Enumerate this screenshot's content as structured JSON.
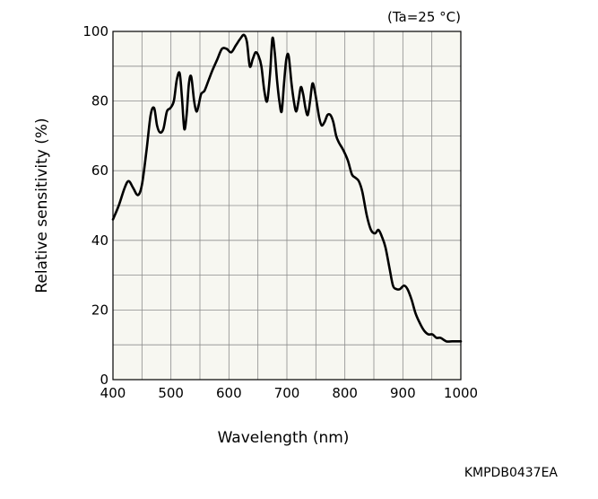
{
  "chart_data": {
    "type": "line",
    "title": "",
    "xlabel": "Wavelength (nm)",
    "ylabel": "Relative sensitivity (%)",
    "xlim": [
      400,
      1000
    ],
    "ylim": [
      0,
      100
    ],
    "x_ticks": [
      400,
      500,
      600,
      700,
      800,
      900,
      1000
    ],
    "y_ticks": [
      0,
      20,
      40,
      60,
      80,
      100
    ],
    "grid": true,
    "condition_label": "(Ta=25 °C)",
    "document_code": "KMPDB0437EA",
    "colors": {
      "background": "#ffffff",
      "plot_area": "#f7f7f1",
      "grid": "#8c8c8c",
      "line": "#000000"
    },
    "series": [
      {
        "x": [
          400,
          410,
          420,
          427,
          435,
          443,
          450,
          458,
          465,
          471,
          476,
          481,
          487,
          493,
          499,
          505,
          510,
          515,
          519,
          523,
          527,
          531,
          535,
          540,
          544,
          548,
          552,
          558,
          565,
          572,
          580,
          588,
          596,
          604,
          612,
          620,
          626,
          631,
          636,
          641,
          646,
          651,
          656,
          661,
          666,
          671,
          675,
          679,
          683,
          687,
          691,
          695,
          699,
          703,
          708,
          712,
          716,
          720,
          724,
          728,
          732,
          736,
          740,
          744,
          748,
          752,
          756,
          760,
          765,
          770,
          775,
          780,
          785,
          790,
          797,
          805,
          812,
          818,
          824,
          830,
          838,
          845,
          852,
          858,
          864,
          870,
          877,
          883,
          889,
          895,
          902,
          908,
          915,
          922,
          930,
          937,
          944,
          951,
          958,
          965,
          975,
          985,
          993,
          1000
        ],
        "y": [
          46,
          50,
          55,
          57,
          55,
          53,
          56,
          66,
          76,
          78,
          73,
          71,
          72,
          77,
          78,
          80,
          86,
          88,
          81,
          72,
          76,
          85,
          87,
          80,
          77,
          79,
          82,
          83,
          86,
          89,
          92,
          95,
          95,
          94,
          96,
          98,
          99,
          97,
          90,
          92,
          94,
          93,
          90,
          83,
          80,
          88,
          98,
          94,
          86,
          80,
          77,
          85,
          92,
          93,
          85,
          80,
          77,
          80,
          84,
          82,
          78,
          76,
          80,
          85,
          83,
          79,
          75,
          73,
          74,
          76,
          76,
          74,
          70,
          68,
          66,
          63,
          59,
          58,
          57,
          54,
          47,
          43,
          42,
          43,
          41,
          38,
          32,
          27,
          26,
          26,
          27,
          26,
          23,
          19,
          16,
          14,
          13,
          13,
          12,
          12,
          11,
          11,
          11,
          11
        ]
      }
    ]
  }
}
